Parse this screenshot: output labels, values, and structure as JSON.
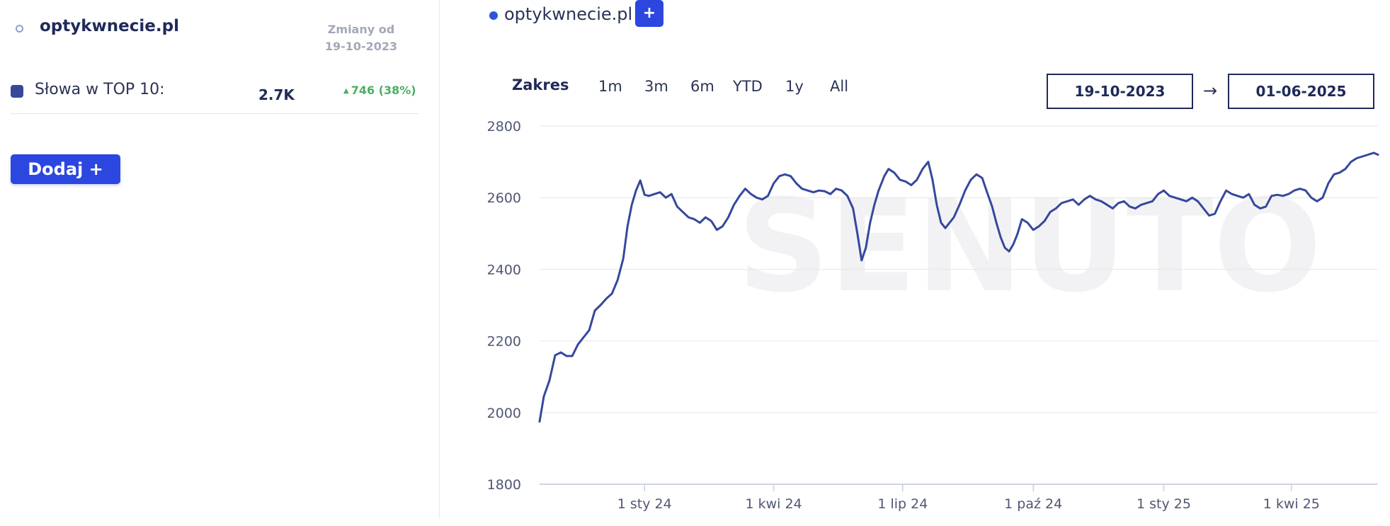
{
  "left": {
    "domain": "optykwnecie.pl",
    "changes_label": "Zmiany od",
    "changes_date": "19-10-2023",
    "metric": {
      "label": "Słowa w TOP 10:",
      "value": "2.7K",
      "change": "746 (38%)",
      "color": "#36489c"
    },
    "add_button": "Dodaj +"
  },
  "legend": {
    "label": "optykwnecie.pl",
    "add_label": "+",
    "dot_color": "#2c56d6"
  },
  "range": {
    "label": "Zakres",
    "buttons": [
      "1m",
      "3m",
      "6m",
      "YTD",
      "1y",
      "All"
    ],
    "start_date": "19-10-2023",
    "end_date": "01-06-2025",
    "arrow": "→"
  },
  "chart_data": {
    "type": "line",
    "watermark": "SENUTO",
    "ylim": [
      1800,
      2800
    ],
    "yticks": [
      1800,
      2000,
      2200,
      2400,
      2600,
      2800
    ],
    "grid": true,
    "x_range": [
      "2023-10-19",
      "2025-06-01"
    ],
    "xticks": [
      {
        "date": "2024-01-01",
        "label": "1 sty 24"
      },
      {
        "date": "2024-04-01",
        "label": "1 kwi 24"
      },
      {
        "date": "2024-07-01",
        "label": "1 lip 24"
      },
      {
        "date": "2024-10-01",
        "label": "1 paź 24"
      },
      {
        "date": "2025-01-01",
        "label": "1 sty 25"
      },
      {
        "date": "2025-04-01",
        "label": "1 kwi 25"
      }
    ],
    "series": [
      {
        "name": "optykwnecie.pl",
        "color": "#36489c",
        "points": [
          [
            "2023-10-19",
            1975
          ],
          [
            "2023-10-22",
            2045
          ],
          [
            "2023-10-26",
            2090
          ],
          [
            "2023-10-30",
            2160
          ],
          [
            "2023-11-03",
            2168
          ],
          [
            "2023-11-07",
            2158
          ],
          [
            "2023-11-11",
            2158
          ],
          [
            "2023-11-15",
            2190
          ],
          [
            "2023-11-19",
            2210
          ],
          [
            "2023-11-23",
            2230
          ],
          [
            "2023-11-27",
            2285
          ],
          [
            "2023-12-01",
            2300
          ],
          [
            "2023-12-05",
            2318
          ],
          [
            "2023-12-09",
            2332
          ],
          [
            "2023-12-13",
            2370
          ],
          [
            "2023-12-17",
            2430
          ],
          [
            "2023-12-20",
            2520
          ],
          [
            "2023-12-23",
            2580
          ],
          [
            "2023-12-26",
            2620
          ],
          [
            "2023-12-29",
            2648
          ],
          [
            "2024-01-01",
            2608
          ],
          [
            "2024-01-04",
            2605
          ],
          [
            "2024-01-08",
            2610
          ],
          [
            "2024-01-12",
            2615
          ],
          [
            "2024-01-16",
            2600
          ],
          [
            "2024-01-20",
            2610
          ],
          [
            "2024-01-24",
            2575
          ],
          [
            "2024-01-28",
            2560
          ],
          [
            "2024-02-01",
            2545
          ],
          [
            "2024-02-05",
            2540
          ],
          [
            "2024-02-09",
            2530
          ],
          [
            "2024-02-13",
            2545
          ],
          [
            "2024-02-17",
            2535
          ],
          [
            "2024-02-21",
            2510
          ],
          [
            "2024-02-25",
            2520
          ],
          [
            "2024-02-29",
            2545
          ],
          [
            "2024-03-04",
            2580
          ],
          [
            "2024-03-08",
            2605
          ],
          [
            "2024-03-12",
            2625
          ],
          [
            "2024-03-16",
            2610
          ],
          [
            "2024-03-20",
            2600
          ],
          [
            "2024-03-24",
            2595
          ],
          [
            "2024-03-28",
            2605
          ],
          [
            "2024-04-01",
            2640
          ],
          [
            "2024-04-05",
            2660
          ],
          [
            "2024-04-09",
            2665
          ],
          [
            "2024-04-13",
            2660
          ],
          [
            "2024-04-17",
            2640
          ],
          [
            "2024-04-21",
            2625
          ],
          [
            "2024-04-25",
            2620
          ],
          [
            "2024-04-29",
            2615
          ],
          [
            "2024-05-03",
            2620
          ],
          [
            "2024-05-07",
            2618
          ],
          [
            "2024-05-11",
            2610
          ],
          [
            "2024-05-15",
            2625
          ],
          [
            "2024-05-19",
            2620
          ],
          [
            "2024-05-23",
            2605
          ],
          [
            "2024-05-27",
            2570
          ],
          [
            "2024-05-30",
            2500
          ],
          [
            "2024-06-02",
            2425
          ],
          [
            "2024-06-05",
            2460
          ],
          [
            "2024-06-08",
            2530
          ],
          [
            "2024-06-11",
            2580
          ],
          [
            "2024-06-14",
            2620
          ],
          [
            "2024-06-18",
            2660
          ],
          [
            "2024-06-21",
            2680
          ],
          [
            "2024-06-25",
            2670
          ],
          [
            "2024-06-29",
            2650
          ],
          [
            "2024-07-03",
            2645
          ],
          [
            "2024-07-07",
            2635
          ],
          [
            "2024-07-11",
            2650
          ],
          [
            "2024-07-15",
            2680
          ],
          [
            "2024-07-19",
            2700
          ],
          [
            "2024-07-22",
            2650
          ],
          [
            "2024-07-25",
            2580
          ],
          [
            "2024-07-28",
            2530
          ],
          [
            "2024-07-31",
            2515
          ],
          [
            "2024-08-03",
            2530
          ],
          [
            "2024-08-06",
            2545
          ],
          [
            "2024-08-10",
            2580
          ],
          [
            "2024-08-14",
            2620
          ],
          [
            "2024-08-18",
            2650
          ],
          [
            "2024-08-22",
            2665
          ],
          [
            "2024-08-26",
            2655
          ],
          [
            "2024-08-29",
            2620
          ],
          [
            "2024-09-02",
            2575
          ],
          [
            "2024-09-05",
            2530
          ],
          [
            "2024-09-08",
            2490
          ],
          [
            "2024-09-11",
            2460
          ],
          [
            "2024-09-14",
            2450
          ],
          [
            "2024-09-17",
            2470
          ],
          [
            "2024-09-20",
            2500
          ],
          [
            "2024-09-23",
            2540
          ],
          [
            "2024-09-27",
            2530
          ],
          [
            "2024-10-01",
            2510
          ],
          [
            "2024-10-05",
            2520
          ],
          [
            "2024-10-09",
            2535
          ],
          [
            "2024-10-13",
            2560
          ],
          [
            "2024-10-17",
            2570
          ],
          [
            "2024-10-21",
            2585
          ],
          [
            "2024-10-25",
            2590
          ],
          [
            "2024-10-29",
            2595
          ],
          [
            "2024-11-02",
            2580
          ],
          [
            "2024-11-06",
            2595
          ],
          [
            "2024-11-10",
            2605
          ],
          [
            "2024-11-14",
            2595
          ],
          [
            "2024-11-18",
            2590
          ],
          [
            "2024-11-22",
            2580
          ],
          [
            "2024-11-26",
            2570
          ],
          [
            "2024-11-30",
            2585
          ],
          [
            "2024-12-04",
            2590
          ],
          [
            "2024-12-08",
            2575
          ],
          [
            "2024-12-12",
            2570
          ],
          [
            "2024-12-16",
            2580
          ],
          [
            "2024-12-20",
            2585
          ],
          [
            "2024-12-24",
            2590
          ],
          [
            "2024-12-28",
            2610
          ],
          [
            "2025-01-01",
            2620
          ],
          [
            "2025-01-05",
            2605
          ],
          [
            "2025-01-09",
            2600
          ],
          [
            "2025-01-13",
            2595
          ],
          [
            "2025-01-17",
            2590
          ],
          [
            "2025-01-21",
            2600
          ],
          [
            "2025-01-25",
            2590
          ],
          [
            "2025-01-29",
            2570
          ],
          [
            "2025-02-02",
            2550
          ],
          [
            "2025-02-06",
            2555
          ],
          [
            "2025-02-10",
            2590
          ],
          [
            "2025-02-14",
            2620
          ],
          [
            "2025-02-18",
            2610
          ],
          [
            "2025-02-22",
            2605
          ],
          [
            "2025-02-26",
            2600
          ],
          [
            "2025-03-02",
            2610
          ],
          [
            "2025-03-06",
            2580
          ],
          [
            "2025-03-10",
            2570
          ],
          [
            "2025-03-14",
            2575
          ],
          [
            "2025-03-18",
            2605
          ],
          [
            "2025-03-22",
            2608
          ],
          [
            "2025-03-26",
            2605
          ],
          [
            "2025-03-30",
            2610
          ],
          [
            "2025-04-03",
            2620
          ],
          [
            "2025-04-07",
            2625
          ],
          [
            "2025-04-11",
            2620
          ],
          [
            "2025-04-15",
            2600
          ],
          [
            "2025-04-19",
            2590
          ],
          [
            "2025-04-23",
            2600
          ],
          [
            "2025-04-27",
            2640
          ],
          [
            "2025-05-01",
            2665
          ],
          [
            "2025-05-05",
            2670
          ],
          [
            "2025-05-09",
            2680
          ],
          [
            "2025-05-13",
            2700
          ],
          [
            "2025-05-17",
            2710
          ],
          [
            "2025-05-21",
            2715
          ],
          [
            "2025-05-25",
            2720
          ],
          [
            "2025-05-29",
            2725
          ],
          [
            "2025-06-01",
            2720
          ]
        ]
      }
    ]
  }
}
